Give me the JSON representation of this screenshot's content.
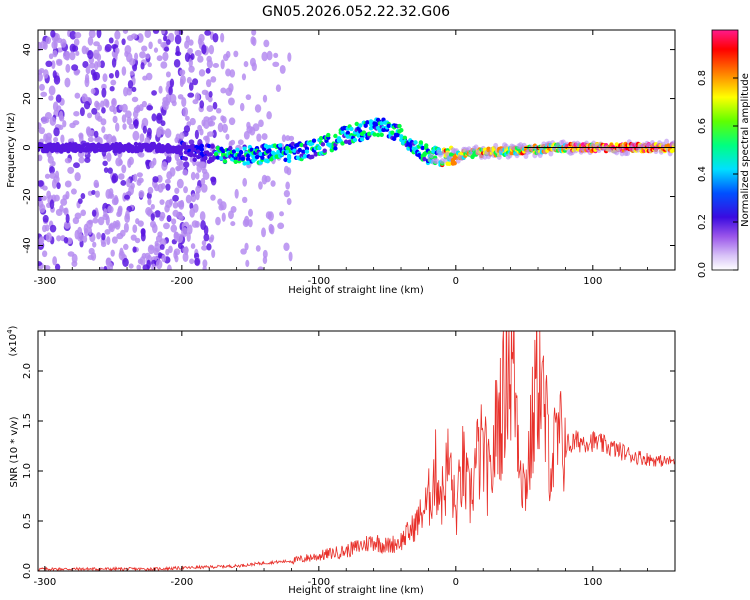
{
  "figure": {
    "title": "GN05.2026.052.22.32.G06"
  },
  "chart_data": [
    {
      "type": "heatmap",
      "xlabel": "Height of straight line (km)",
      "ylabel": "Frequency (Hz)",
      "xlim": [
        -305,
        160
      ],
      "ylim": [
        -50,
        48
      ],
      "xticks": [
        -300,
        -200,
        -100,
        0,
        100
      ],
      "yticks": [
        -40,
        -20,
        0,
        20,
        40
      ],
      "grid": false,
      "colorbar": {
        "label": "Normalized spectral amplitude",
        "range": [
          0,
          1
        ],
        "ticks": [
          0.0,
          0.2,
          0.4,
          0.6,
          0.8
        ],
        "colors": [
          "#ffffff",
          "#b58cf0",
          "#5a18e0",
          "#0000ff",
          "#00e5ff",
          "#00ff40",
          "#ffff00",
          "#ff8000",
          "#ff0000",
          "#ff1493"
        ]
      },
      "ridge": {
        "x": [
          -305,
          -260,
          -220,
          -200,
          -175,
          -150,
          -120,
          -100,
          -80,
          -60,
          -50,
          -40,
          -30,
          -20,
          -10,
          0,
          20,
          50,
          80,
          100,
          130,
          160
        ],
        "y": [
          0,
          0,
          0,
          -1,
          -3,
          -3,
          -2,
          0,
          5,
          8,
          8,
          5,
          0,
          -3,
          -4,
          -3,
          -2,
          -1,
          0,
          0,
          0,
          0
        ]
      },
      "guide_line_y": 0
    },
    {
      "type": "line",
      "xlabel": "Height of straight line (km)",
      "ylabel": "SNR (10 * v/v)",
      "y_multiplier": "(x10",
      "y_multiplier_exp": "4",
      "y_multiplier_close": ")",
      "xlim": [
        -305,
        160
      ],
      "ylim": [
        0,
        2.4
      ],
      "xticks": [
        -300,
        -200,
        -100,
        0,
        100
      ],
      "yticks": [
        0.0,
        0.5,
        1.0,
        1.5,
        2.0
      ],
      "line_color": "#e8302a",
      "grid": false,
      "series": [
        {
          "x": [
            -305,
            -280,
            -250,
            -220,
            -200,
            -180,
            -160,
            -140,
            -120,
            -100,
            -90,
            -80,
            -70,
            -60,
            -50,
            -40,
            -30,
            -20,
            -15,
            -10,
            -5,
            0,
            5,
            10,
            15,
            20,
            25,
            30,
            35,
            38,
            40,
            42,
            45,
            50,
            55,
            60,
            65,
            70,
            75,
            80,
            90,
            100,
            110,
            120,
            130,
            140,
            150,
            160
          ],
          "y": [
            0.02,
            0.02,
            0.02,
            0.02,
            0.03,
            0.04,
            0.05,
            0.08,
            0.1,
            0.15,
            0.18,
            0.2,
            0.25,
            0.3,
            0.25,
            0.3,
            0.45,
            0.7,
            1.0,
            0.75,
            1.1,
            0.55,
            1.05,
            0.7,
            1.1,
            1.2,
            0.85,
            1.5,
            1.7,
            2.3,
            1.95,
            2.1,
            1.5,
            0.8,
            1.3,
            2.05,
            1.5,
            1.1,
            1.3,
            1.25,
            1.3,
            1.3,
            1.25,
            1.2,
            1.15,
            1.12,
            1.1,
            1.1
          ]
        }
      ]
    }
  ]
}
